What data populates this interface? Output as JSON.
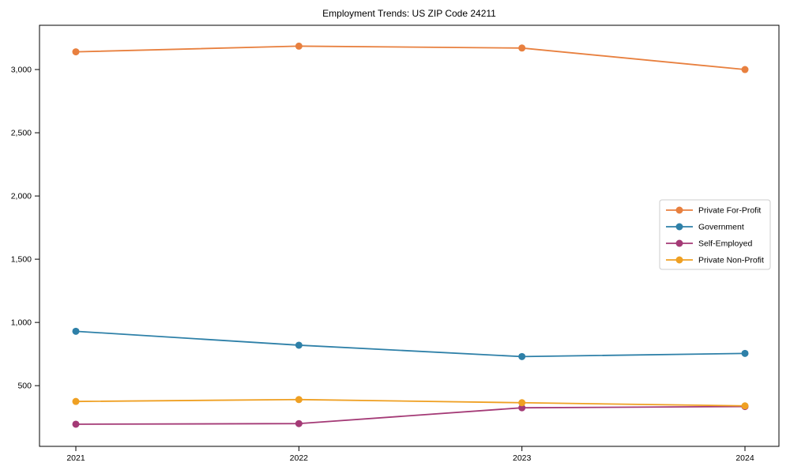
{
  "chart_data": {
    "type": "line",
    "title": "Employment Trends: US ZIP Code 24211",
    "categories": [
      "2021",
      "2022",
      "2023",
      "2024"
    ],
    "series": [
      {
        "name": "Private For-Profit",
        "color": "#e8803f",
        "values": [
          3140,
          3185,
          3170,
          3000
        ]
      },
      {
        "name": "Government",
        "color": "#2e80a8",
        "values": [
          930,
          820,
          730,
          755
        ]
      },
      {
        "name": "Self-Employed",
        "color": "#a43a76",
        "values": [
          195,
          200,
          325,
          335
        ]
      },
      {
        "name": "Private Non-Profit",
        "color": "#efa023",
        "values": [
          375,
          390,
          365,
          340
        ]
      }
    ],
    "xlabel": "",
    "ylabel": "",
    "ylim": [
      20,
      3350
    ],
    "yticks": [
      {
        "value": 500,
        "label": "500"
      },
      {
        "value": 1000,
        "label": "1,000"
      },
      {
        "value": 1500,
        "label": "1,500"
      },
      {
        "value": 2000,
        "label": "2,000"
      },
      {
        "value": 2500,
        "label": "2,500"
      },
      {
        "value": 3000,
        "label": "3,000"
      }
    ],
    "legend_position": "right",
    "grid": false,
    "marker": "circle",
    "axis_color": "#000000",
    "legend_border_color": "#cccccc"
  }
}
